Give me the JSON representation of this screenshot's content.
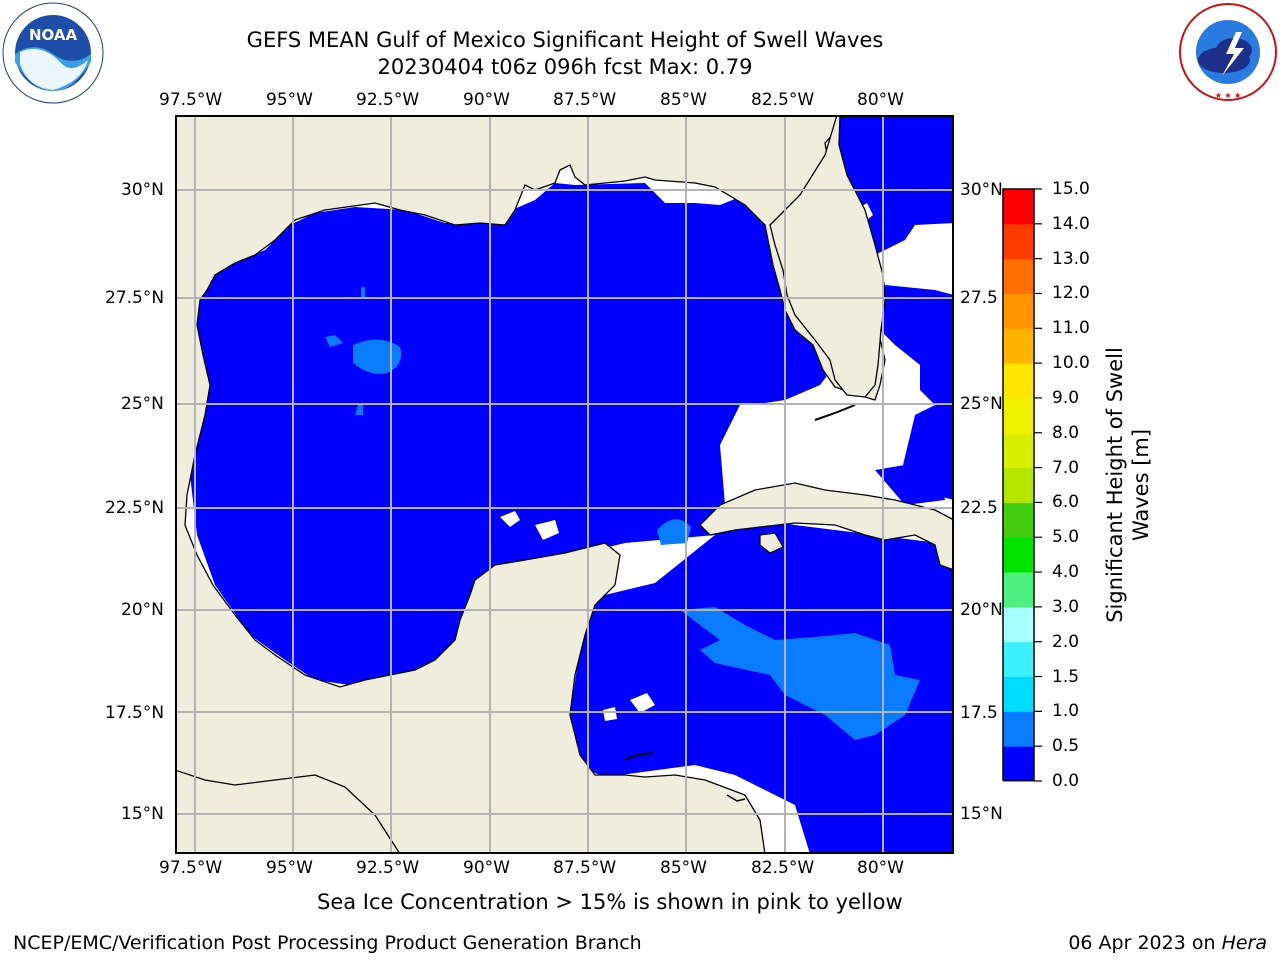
{
  "header": {
    "title_line1": "GEFS MEAN Gulf of Mexico Significant Height of Swell Waves",
    "title_line2": "20230404 t06z 096h fcst   Max: 0.79"
  },
  "logos": {
    "left": {
      "name": "noaa-logo",
      "text": "NOAA",
      "ring_text": "NATIONAL OCEANIC AND ATMOSPHERIC ADMINISTRATION · U.S. DEPARTMENT OF COMMERCE"
    },
    "right": {
      "name": "nws-logo",
      "ring_text": "NATIONAL WEATHER SERVICE"
    }
  },
  "map": {
    "lon_labels": [
      "97.5°W",
      "95°W",
      "92.5°W",
      "90°W",
      "87.5°W",
      "85°W",
      "82.5°W",
      "80°W"
    ],
    "lat_labels": [
      "30°N",
      "27.5°N",
      "25°N",
      "22.5°N",
      "20°N",
      "17.5°N",
      "15°N"
    ],
    "lat_labels_right": [
      "30°N",
      "27.5",
      "25°N",
      "22.5",
      "20°N",
      "17.5",
      "15°N"
    ],
    "extent": {
      "lon_min": -98,
      "lon_max": -78.2,
      "lat_min": 14.0,
      "lat_max": 31.8
    },
    "colors": {
      "land": "#efeedc",
      "swell_0_0.5": "#0000ff",
      "swell_0.5_1.0": "#0a7cff",
      "grid": "#b3b3b3",
      "nodata": "#ffffff"
    }
  },
  "colorbar": {
    "label_line1": "Significant Height of Swell",
    "label_line2": "Waves [m]",
    "ticks": [
      "15.0",
      "14.0",
      "13.0",
      "12.0",
      "11.0",
      "10.0",
      "9.0",
      "8.0",
      "7.0",
      "6.0",
      "5.0",
      "4.0",
      "3.0",
      "2.0",
      "1.5",
      "1.0",
      "0.5",
      "0.0"
    ],
    "bins": [
      {
        "from": 0.0,
        "to": 0.5,
        "color": "#0000ff"
      },
      {
        "from": 0.5,
        "to": 1.0,
        "color": "#0a7cff"
      },
      {
        "from": 1.0,
        "to": 1.5,
        "color": "#00dcff"
      },
      {
        "from": 1.5,
        "to": 2.0,
        "color": "#3cf0ff"
      },
      {
        "from": 2.0,
        "to": 3.0,
        "color": "#a8ffff"
      },
      {
        "from": 3.0,
        "to": 4.0,
        "color": "#50f080"
      },
      {
        "from": 4.0,
        "to": 5.0,
        "color": "#00e400"
      },
      {
        "from": 5.0,
        "to": 6.0,
        "color": "#44cc10"
      },
      {
        "from": 6.0,
        "to": 7.0,
        "color": "#b4e600"
      },
      {
        "from": 7.0,
        "to": 8.0,
        "color": "#d8f000"
      },
      {
        "from": 8.0,
        "to": 9.0,
        "color": "#f0f000"
      },
      {
        "from": 9.0,
        "to": 10.0,
        "color": "#ffe600"
      },
      {
        "from": 10.0,
        "to": 11.0,
        "color": "#ffb400"
      },
      {
        "from": 11.0,
        "to": 12.0,
        "color": "#ff9600"
      },
      {
        "from": 12.0,
        "to": 13.0,
        "color": "#ff6e00"
      },
      {
        "from": 13.0,
        "to": 14.0,
        "color": "#ff3c00"
      },
      {
        "from": 14.0,
        "to": 15.0,
        "color": "#ff0000"
      }
    ]
  },
  "notes": {
    "sea_ice": "Sea Ice Concentration > 15% is shown in pink to yellow"
  },
  "footer": {
    "left": "NCEP/EMC/Verification Post Processing Product Generation Branch",
    "date": "06 Apr 2023 on ",
    "machine": "Hera"
  }
}
